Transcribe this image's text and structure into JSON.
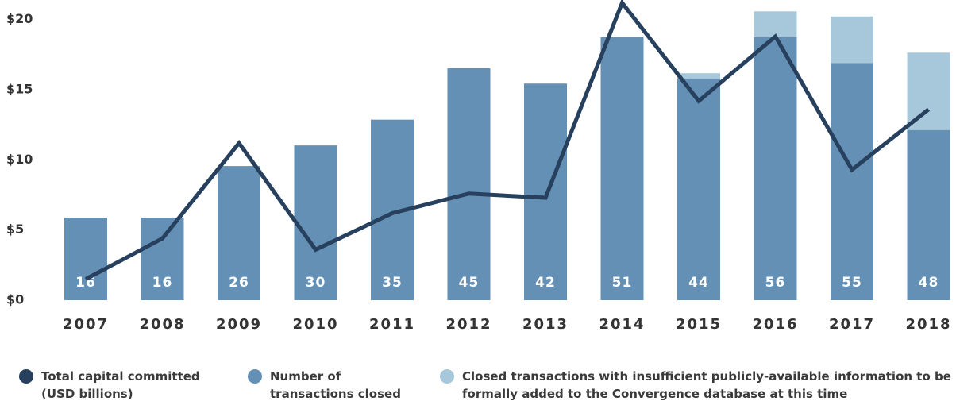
{
  "chart_data": {
    "type": "bar_line",
    "categories": [
      "2007",
      "2008",
      "2009",
      "2010",
      "2011",
      "2012",
      "2013",
      "2014",
      "2015",
      "2016",
      "2017",
      "2018"
    ],
    "series": [
      {
        "name": "Total capital committed (USD billions)",
        "type": "line",
        "color": "#27405e",
        "values": [
          1.5,
          4.4,
          11.2,
          3.6,
          6.2,
          7.6,
          7.3,
          21.2,
          14.2,
          18.8,
          9.3,
          13.6
        ]
      },
      {
        "name": "Number of transactions closed",
        "type": "bar",
        "axis": "y2",
        "color": "#6490b5",
        "values": [
          16,
          16,
          26,
          30,
          35,
          45,
          42,
          51,
          43,
          51,
          46,
          33
        ]
      },
      {
        "name": "Closed transactions with insufficient publicly-available information to be formally added to the Convergence database at this time",
        "type": "bar",
        "axis": "y2",
        "color": "#a7c8da",
        "values": [
          0,
          0,
          0,
          0,
          0,
          0,
          0,
          0,
          1,
          5,
          9,
          15
        ]
      }
    ],
    "bar_labels": [
      16,
      16,
      26,
      30,
      35,
      45,
      42,
      51,
      44,
      56,
      55,
      48
    ],
    "ylim": [
      0,
      21.4
    ],
    "yticks": [
      {
        "value": 0,
        "label": "$0"
      },
      {
        "value": 5,
        "label": "$5"
      },
      {
        "value": 10,
        "label": "$10"
      },
      {
        "value": 15,
        "label": "$15"
      },
      {
        "value": 20,
        "label": "$20"
      }
    ],
    "y2lim": [
      0,
      58.2
    ]
  }
}
